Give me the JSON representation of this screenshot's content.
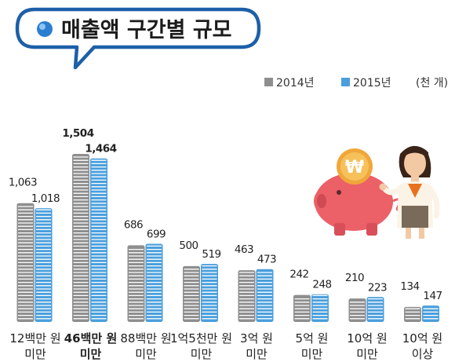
{
  "title": "매출액 구간별 규모",
  "unit": "(천 개)",
  "colors": {
    "series_2014": "#8e8e8e",
    "series_2015": "#4a9fdc",
    "title_border": "#1d5fa8",
    "title_dot": "#2b7fd0",
    "piggy": "#ec6068",
    "coin": "#f0a73a"
  },
  "chart_data": {
    "type": "bar",
    "title": "매출액 구간별 규모",
    "ylabel": "",
    "unit": "(천 개)",
    "ylim": [
      0,
      1600
    ],
    "legend": "top-right",
    "grid": false,
    "categories": [
      [
        "12백만 원",
        "미만"
      ],
      [
        "46백만 원",
        "미만"
      ],
      [
        "88백만 원",
        "미만"
      ],
      [
        "1억5천만 원",
        "미만"
      ],
      [
        "3억 원",
        "미만"
      ],
      [
        "5억 원",
        "미만"
      ],
      [
        "10억 원",
        "미만"
      ],
      [
        "10억 원",
        "이상"
      ]
    ],
    "highlight_category": 1,
    "series": [
      {
        "name": "2014년",
        "values": [
          1063,
          1504,
          686,
          500,
          463,
          242,
          210,
          134
        ]
      },
      {
        "name": "2015년",
        "values": [
          1018,
          1464,
          699,
          519,
          473,
          248,
          223,
          147
        ]
      }
    ],
    "value_labels": [
      [
        "1,063",
        "1,504",
        "686",
        "500",
        "463",
        "242",
        "210",
        "134"
      ],
      [
        "1,018",
        "1,464",
        "699",
        "519",
        "473",
        "248",
        "223",
        "147"
      ]
    ]
  },
  "illustration": {
    "piggy_icon": "piggy-bank-icon",
    "coin_icon": "won-coin-icon",
    "coin_symbol": "₩",
    "person_icon": "businesswoman-icon"
  },
  "title_icon": "bullet-dot-icon"
}
